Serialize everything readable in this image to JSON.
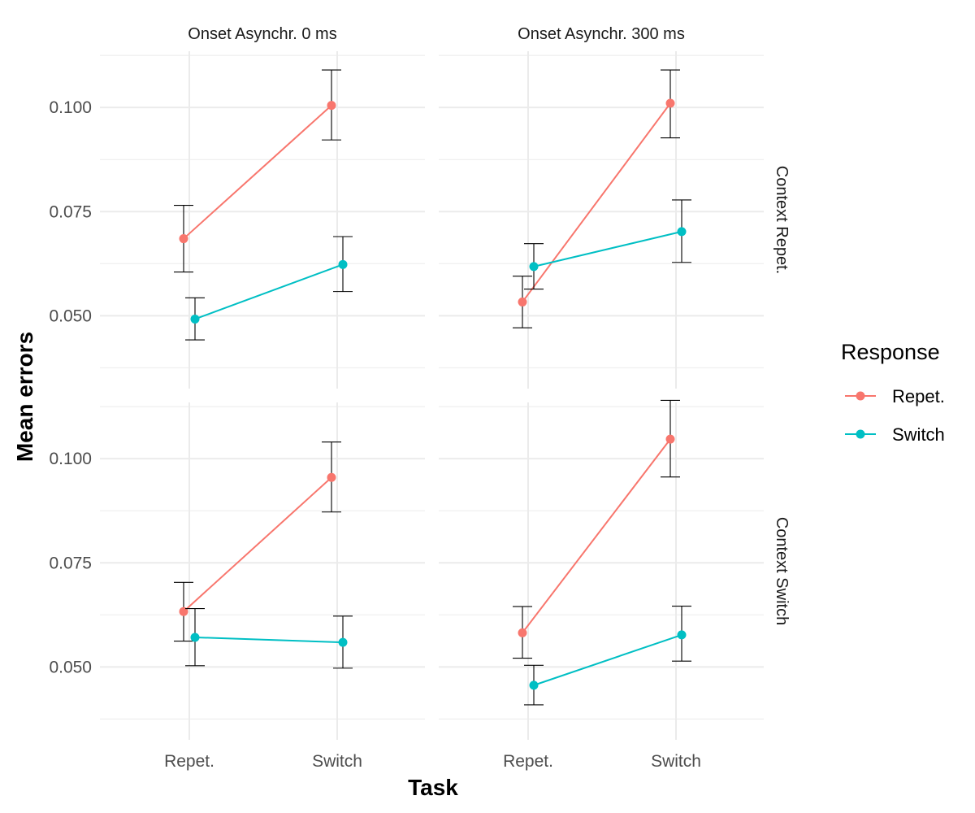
{
  "chart_data": {
    "type": "line",
    "xlabel": "Task",
    "ylabel": "Mean errors",
    "categories": [
      "Repet.",
      "Switch"
    ],
    "ylim": [
      0.0325,
      0.1135
    ],
    "y_ticks": [
      0.05,
      0.075,
      0.1
    ],
    "y_tick_labels": [
      "0.050",
      "0.075",
      "0.100"
    ],
    "grid": true,
    "legend": {
      "title": "Response",
      "position": "right",
      "items": [
        {
          "name": "Repet.",
          "color": "#F8766D"
        },
        {
          "name": "Switch",
          "color": "#00BFC4"
        }
      ]
    },
    "facet_columns": [
      "Onset Asynchr. 0 ms",
      "Onset Asynchr. 300 ms"
    ],
    "facet_rows": [
      "Context Repet.",
      "Context Switch"
    ],
    "panels": [
      {
        "col": 0,
        "row": 0,
        "series": [
          {
            "name": "Repet.",
            "values": [
              0.0685,
              0.1005
            ],
            "lower": [
              0.0605,
              0.0922
            ],
            "upper": [
              0.0765,
              0.109
            ]
          },
          {
            "name": "Switch",
            "values": [
              0.0492,
              0.0623
            ],
            "lower": [
              0.0442,
              0.0558
            ],
            "upper": [
              0.0543,
              0.069
            ]
          }
        ]
      },
      {
        "col": 1,
        "row": 0,
        "series": [
          {
            "name": "Repet.",
            "values": [
              0.0533,
              0.101
            ],
            "lower": [
              0.0471,
              0.0927
            ],
            "upper": [
              0.0595,
              0.109
            ]
          },
          {
            "name": "Switch",
            "values": [
              0.0618,
              0.0702
            ],
            "lower": [
              0.0564,
              0.0628
            ],
            "upper": [
              0.0673,
              0.0778
            ]
          }
        ]
      },
      {
        "col": 0,
        "row": 1,
        "series": [
          {
            "name": "Repet.",
            "values": [
              0.0633,
              0.0955
            ],
            "lower": [
              0.0562,
              0.0872
            ],
            "upper": [
              0.0703,
              0.104
            ]
          },
          {
            "name": "Switch",
            "values": [
              0.0571,
              0.0559
            ],
            "lower": [
              0.0503,
              0.0497
            ],
            "upper": [
              0.064,
              0.0622
            ]
          }
        ]
      },
      {
        "col": 1,
        "row": 1,
        "series": [
          {
            "name": "Repet.",
            "values": [
              0.0582,
              0.1047
            ],
            "lower": [
              0.0521,
              0.0956
            ],
            "upper": [
              0.0645,
              0.114
            ]
          },
          {
            "name": "Switch",
            "values": [
              0.0456,
              0.0577
            ],
            "lower": [
              0.0409,
              0.0514
            ],
            "upper": [
              0.0504,
              0.0646
            ]
          }
        ]
      }
    ]
  }
}
